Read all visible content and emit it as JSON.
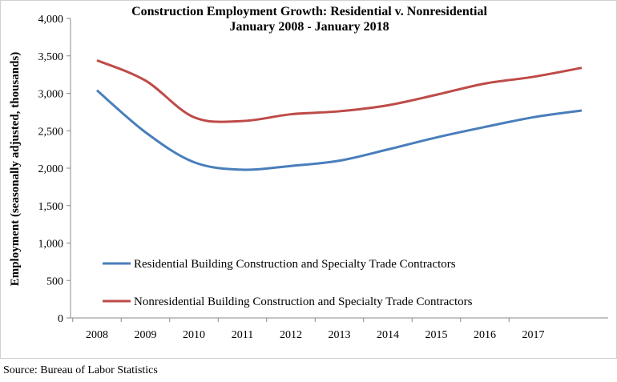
{
  "chart_data": {
    "type": "line",
    "title": "Construction Employment Growth:  Residential v. Nonresidential",
    "subtitle": "January 2008 - January 2018",
    "xlabel": "",
    "ylabel": "Employment (seasonally adjusted, thousands)",
    "ylim": [
      0,
      4000
    ],
    "yticks": [
      "0",
      "500",
      "1,000",
      "1,500",
      "2,000",
      "2,500",
      "3,000",
      "3,500",
      "4,000"
    ],
    "ytick_values": [
      0,
      500,
      1000,
      1500,
      2000,
      2500,
      3000,
      3500,
      4000
    ],
    "categories": [
      "2008",
      "2009",
      "2010",
      "2011",
      "2012",
      "2013",
      "2014",
      "2015",
      "2016",
      "2017"
    ],
    "x": [
      2008,
      2009,
      2010,
      2011,
      2012,
      2013,
      2014,
      2015,
      2016,
      2017,
      2018
    ],
    "series": [
      {
        "name": "Residential Building Construction and Specialty Trade Contractors",
        "color": "#4a7ebb",
        "values": [
          3040,
          2480,
          2080,
          1980,
          2030,
          2100,
          2250,
          2410,
          2550,
          2680,
          2770
        ]
      },
      {
        "name": "Nonresidential Building Construction and Specialty Trade Contractors",
        "color": "#be4b48",
        "values": [
          3440,
          3170,
          2680,
          2630,
          2720,
          2760,
          2840,
          2980,
          3130,
          3220,
          3340
        ]
      }
    ],
    "legend_position": "inside-lower-left",
    "grid": false
  },
  "source_note": "Source:  Bureau of Labor Statistics"
}
